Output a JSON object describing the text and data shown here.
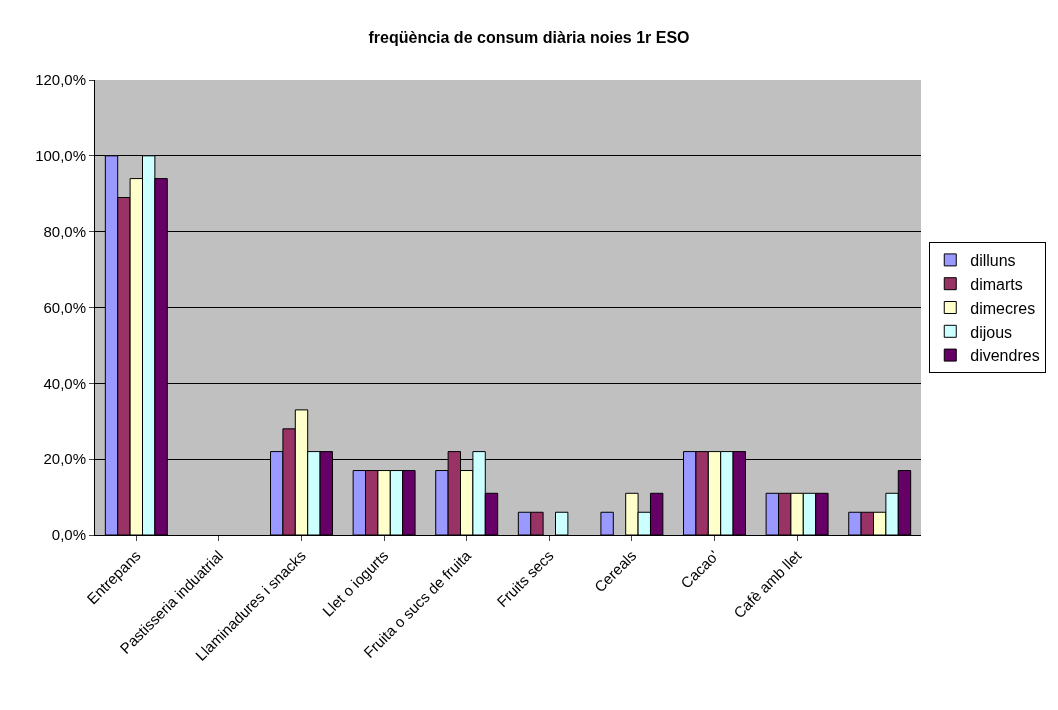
{
  "chart_data": {
    "type": "bar",
    "title": "freqüència de consum diària noies 1r ESO",
    "categories": [
      "Entrepans",
      "Pastisseria induatrial",
      "Llaminadures i snacks",
      "Llet o iogurts",
      "Fruita o sucs de fruita",
      "Fruits secs",
      "Cereals",
      "Cacao'",
      "Cafè amb llet",
      null
    ],
    "series": [
      {
        "name": "dilluns",
        "color": "#9999ff",
        "values": [
          100,
          0,
          22,
          17,
          17,
          6,
          6,
          22,
          11,
          6
        ]
      },
      {
        "name": "dimarts",
        "color": "#993366",
        "values": [
          89,
          0,
          28,
          17,
          22,
          6,
          0,
          22,
          11,
          6
        ]
      },
      {
        "name": "dimecres",
        "color": "#ffffcc",
        "values": [
          94,
          0,
          33,
          17,
          17,
          0,
          11,
          22,
          11,
          6
        ]
      },
      {
        "name": "dijous",
        "color": "#ccffff",
        "values": [
          100,
          0,
          22,
          17,
          22,
          6,
          6,
          22,
          11,
          11
        ]
      },
      {
        "name": "divendres",
        "color": "#660066",
        "values": [
          94,
          0,
          22,
          17,
          11,
          0,
          11,
          22,
          11,
          17
        ]
      }
    ],
    "ylim": [
      0,
      120
    ],
    "yticks": [
      {
        "value": 0,
        "label": "0,0%"
      },
      {
        "value": 20,
        "label": "20,0%"
      },
      {
        "value": 40,
        "label": "40,0%"
      },
      {
        "value": 60,
        "label": "60,0%"
      },
      {
        "value": 80,
        "label": "80,0%"
      },
      {
        "value": 100,
        "label": "100,0%"
      },
      {
        "value": 120,
        "label": "120,0%"
      }
    ],
    "grid": "y",
    "legend": "right"
  }
}
